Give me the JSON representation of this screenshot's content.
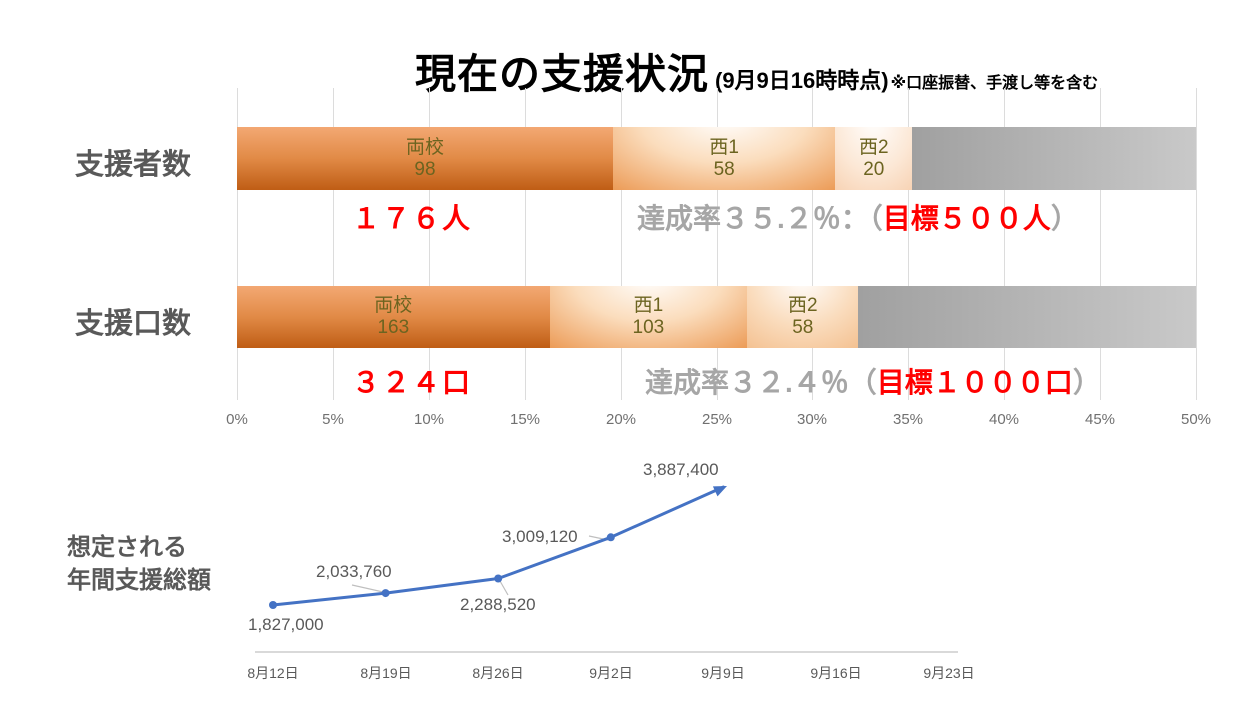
{
  "title": {
    "main": "現在の支援状況",
    "timestamp": "(9月9日16時時点)",
    "note": "※口座振替、手渡し等を含む"
  },
  "colors": {
    "bar_orange_dark": "#C55A11",
    "bar_orange_light": "#F4B183",
    "remainder_gray": "#ABABAB",
    "red": "#FF0000",
    "gray_text": "#A6A6A6",
    "dark_gray_text": "#595959",
    "segment_label_olive": "#6C6420",
    "line_blue": "#4472C4",
    "gridline": "#DCDCDC"
  },
  "axis_ticks": [
    "0%",
    "5%",
    "10%",
    "15%",
    "20%",
    "25%",
    "30%",
    "35%",
    "40%",
    "45%",
    "50%"
  ],
  "chart_data": [
    {
      "type": "bar",
      "orientation": "horizontal",
      "stacked": true,
      "row_label": "支援者数",
      "target": 500,
      "axis": {
        "min": 0,
        "max": 50,
        "unit": "%",
        "grid": true
      },
      "segments": [
        {
          "label": "両校",
          "value": 98
        },
        {
          "label": "西1",
          "value": 58
        },
        {
          "label": "西2",
          "value": 20
        }
      ],
      "total": 176,
      "total_label": "１７６人",
      "rate_label": "達成率３５.２％：",
      "goal_open": "（",
      "goal_text": "目標５００人",
      "goal_close": "）"
    },
    {
      "type": "bar",
      "orientation": "horizontal",
      "stacked": true,
      "row_label": "支援口数",
      "target": 1000,
      "axis": {
        "min": 0,
        "max": 50,
        "unit": "%",
        "grid": true
      },
      "segments": [
        {
          "label": "両校",
          "value": 163
        },
        {
          "label": "西1",
          "value": 103
        },
        {
          "label": "西2",
          "value": 58
        }
      ],
      "total": 324,
      "total_label": "３２４口",
      "rate_label": "達成率３２.４％",
      "goal_open": "（",
      "goal_text": "目標１０００口",
      "goal_close": "）"
    },
    {
      "type": "line",
      "title_lines": [
        "想定される",
        "年間支援総額"
      ],
      "x": [
        "8月12日",
        "8月19日",
        "8月26日",
        "9月2日",
        "9月9日",
        "9月16日",
        "9月23日"
      ],
      "values": [
        1827000,
        2033760,
        2288520,
        3009120,
        3887400
      ],
      "point_labels": [
        "1,827,000",
        "2,033,760",
        "2,288,520",
        "3,009,120",
        "3,887,400"
      ],
      "legend": "none"
    }
  ]
}
